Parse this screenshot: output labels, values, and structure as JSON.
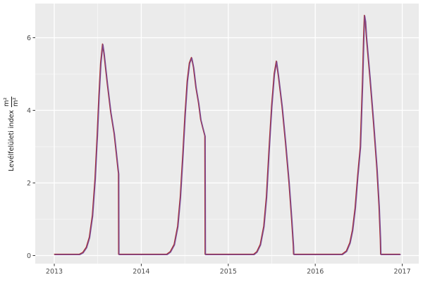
{
  "figure": {
    "background": "#FFFFFF",
    "panel_background": "#EBEBEB",
    "grid_major_color": "#FFFFFF",
    "grid_minor_color": "#FFFFFF",
    "axis_text_color": "#4D4D4D",
    "tick_mark_color": "#333333"
  },
  "y_axis_title": {
    "text": "Levélfelületi index",
    "fraction_numerator": "m²",
    "fraction_denominator": "m²"
  },
  "chart_data": {
    "type": "line",
    "title": "",
    "xlabel": "",
    "ylabel": "Levélfelületi index (m²/m²)",
    "x_ticks": [
      2013,
      2014,
      2015,
      2016,
      2017
    ],
    "x_tick_labels": [
      "2013",
      "2014",
      "2015",
      "2016",
      "2017"
    ],
    "x_minor_ticks": [
      2013.5,
      2014.5,
      2015.5,
      2016.5
    ],
    "y_ticks": [
      0,
      2,
      4,
      6
    ],
    "y_tick_labels": [
      "0",
      "2",
      "4",
      "6"
    ],
    "y_minor_ticks": [
      1,
      3,
      5
    ],
    "xlim": [
      2012.781,
      2017.19
    ],
    "ylim": [
      -0.223,
      6.942
    ],
    "grid": true,
    "legend_position": "none",
    "series": [
      {
        "name": "red-line",
        "color": "#AA2D28"
      },
      {
        "name": "purple-line",
        "color": "#7A4A96"
      }
    ],
    "points": [
      [
        2013.0,
        0.03
      ],
      [
        2013.29,
        0.03
      ],
      [
        2013.33,
        0.08
      ],
      [
        2013.37,
        0.22
      ],
      [
        2013.405,
        0.5
      ],
      [
        2013.44,
        1.1
      ],
      [
        2013.47,
        2.1
      ],
      [
        2013.495,
        3.3
      ],
      [
        2013.515,
        4.4
      ],
      [
        2013.535,
        5.3
      ],
      [
        2013.557,
        5.82
      ],
      [
        2013.572,
        5.58
      ],
      [
        2013.61,
        4.75
      ],
      [
        2013.65,
        3.95
      ],
      [
        2013.69,
        3.35
      ],
      [
        2013.715,
        2.8
      ],
      [
        2013.735,
        2.35
      ],
      [
        2013.74,
        2.25
      ],
      [
        2013.742,
        0.03
      ],
      [
        2014.295,
        0.03
      ],
      [
        2014.335,
        0.1
      ],
      [
        2014.38,
        0.3
      ],
      [
        2014.42,
        0.8
      ],
      [
        2014.45,
        1.6
      ],
      [
        2014.48,
        2.8
      ],
      [
        2014.505,
        3.9
      ],
      [
        2014.53,
        4.8
      ],
      [
        2014.555,
        5.3
      ],
      [
        2014.579,
        5.45
      ],
      [
        2014.592,
        5.3
      ],
      [
        2014.602,
        5.18
      ],
      [
        2014.63,
        4.62
      ],
      [
        2014.66,
        4.2
      ],
      [
        2014.685,
        3.74
      ],
      [
        2014.71,
        3.5
      ],
      [
        2014.733,
        3.29
      ],
      [
        2014.736,
        0.03
      ],
      [
        2015.295,
        0.03
      ],
      [
        2015.33,
        0.1
      ],
      [
        2015.37,
        0.3
      ],
      [
        2015.41,
        0.8
      ],
      [
        2015.44,
        1.6
      ],
      [
        2015.47,
        2.9
      ],
      [
        2015.5,
        4.1
      ],
      [
        2015.53,
        5.0
      ],
      [
        2015.555,
        5.35
      ],
      [
        2015.58,
        4.9
      ],
      [
        2015.62,
        4.1
      ],
      [
        2015.66,
        3.1
      ],
      [
        2015.7,
        2.0
      ],
      [
        2015.73,
        1.0
      ],
      [
        2015.75,
        0.25
      ],
      [
        2015.753,
        0.03
      ],
      [
        2016.31,
        0.03
      ],
      [
        2016.36,
        0.12
      ],
      [
        2016.4,
        0.35
      ],
      [
        2016.43,
        0.7
      ],
      [
        2016.46,
        1.3
      ],
      [
        2016.49,
        2.2
      ],
      [
        2016.52,
        3.0
      ],
      [
        2016.545,
        4.8
      ],
      [
        2016.558,
        6.0
      ],
      [
        2016.567,
        6.61
      ],
      [
        2016.578,
        6.45
      ],
      [
        2016.59,
        6.0
      ],
      [
        2016.63,
        4.9
      ],
      [
        2016.67,
        3.7
      ],
      [
        2016.71,
        2.4
      ],
      [
        2016.735,
        1.35
      ],
      [
        2016.75,
        0.45
      ],
      [
        2016.754,
        0.03
      ],
      [
        2016.98,
        0.03
      ]
    ]
  }
}
